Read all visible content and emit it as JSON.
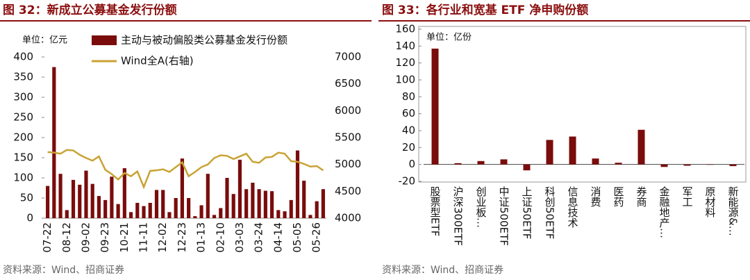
{
  "chart_data": [
    {
      "type": "bar",
      "title": "图 32：新成立公募基金发行份额",
      "unit_label": "单位：亿元",
      "source": "资料来源：Wind、招商证券",
      "categories": [
        "07-22",
        null,
        null,
        "08-12",
        null,
        null,
        "09-02",
        null,
        null,
        "09-23",
        null,
        null,
        "10-21",
        null,
        null,
        "11-11",
        null,
        null,
        "12-02",
        null,
        null,
        "12-23",
        null,
        null,
        "01-13",
        null,
        null,
        "02-10",
        null,
        null,
        "03-03",
        null,
        null,
        "03-24",
        null,
        null,
        "04-14",
        null,
        null,
        "05-05",
        null,
        null,
        "05-26",
        null
      ],
      "series": [
        {
          "name": "主动与被动偏股类公募基金发行份额",
          "color": "#7a0c0c",
          "type": "bar",
          "values": [
            80,
            375,
            110,
            20,
            95,
            83,
            118,
            85,
            55,
            45,
            103,
            35,
            124,
            15,
            38,
            30,
            38,
            70,
            70,
            15,
            50,
            148,
            50,
            5,
            32,
            110,
            8,
            25,
            100,
            60,
            145,
            72,
            88,
            72,
            68,
            67,
            20,
            17,
            45,
            168,
            93,
            8,
            42,
            72
          ]
        },
        {
          "name": "Wind全A(右轴)",
          "color": "#c9a233",
          "type": "line",
          "axis": "y2",
          "values": [
            5230,
            5220,
            5200,
            5270,
            5260,
            5180,
            5120,
            5070,
            5150,
            4900,
            4820,
            4720,
            4840,
            4780,
            4870,
            4580,
            4880,
            4890,
            4910,
            4860,
            4950,
            5040,
            4780,
            4860,
            4950,
            5000,
            5120,
            5170,
            5160,
            5100,
            5150,
            5200,
            5050,
            5030,
            5130,
            5140,
            5220,
            5200,
            5060,
            5050,
            5010,
            4960,
            4970,
            4890
          ]
        }
      ],
      "ylim": [
        0,
        400
      ],
      "yticks": [
        0,
        50,
        100,
        150,
        200,
        250,
        300,
        350,
        400
      ],
      "y2lim": [
        4000,
        7000
      ],
      "y2ticks": [
        4000,
        4500,
        5000,
        5500,
        6000,
        6500,
        7000
      ]
    },
    {
      "type": "bar",
      "title": "图 33：各行业和宽基 ETF 净申购份额",
      "unit_label": "单位：亿份",
      "source": "资料来源：Wind、招商证券",
      "categories": [
        "股票型ETF",
        "沪深300ETF",
        "创业板…",
        "中证500ETF",
        "上证50ETF",
        "科创50ETF",
        "信息技术",
        "消费",
        "医药",
        "券商",
        "金融地产…",
        "军工",
        "原材料",
        "新能源&…"
      ],
      "values": [
        137,
        1.5,
        4,
        6,
        -7,
        29,
        33,
        7,
        2,
        41,
        -3,
        -1.5,
        0,
        -2
      ],
      "color": "#7a0c0c",
      "ylim": [
        -20,
        160
      ],
      "yticks": [
        -20,
        0,
        20,
        40,
        60,
        80,
        100,
        120,
        140,
        160
      ]
    }
  ]
}
